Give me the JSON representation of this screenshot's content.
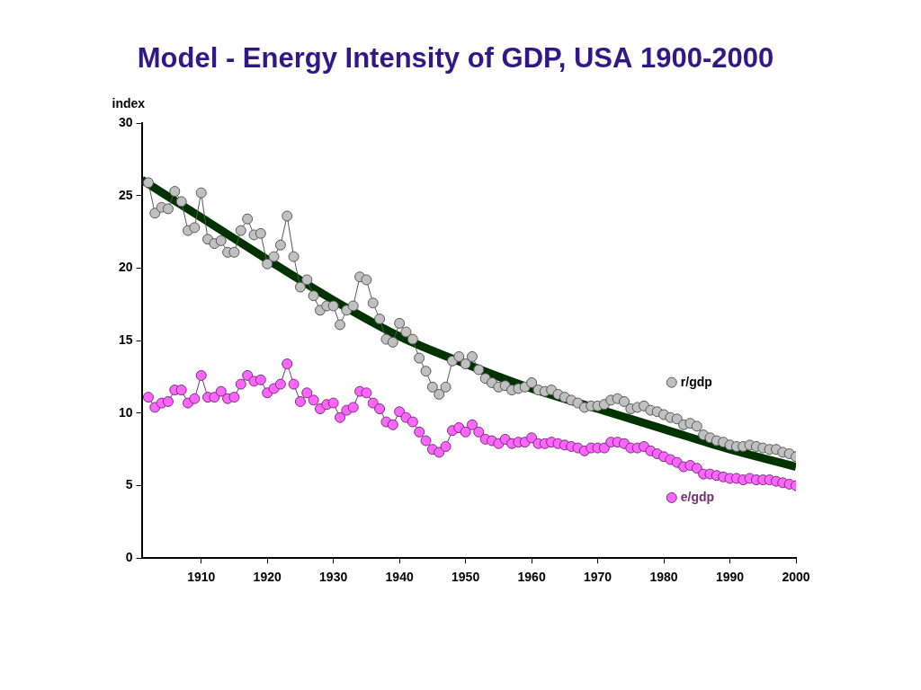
{
  "chart_data": {
    "type": "line",
    "title": "Model - Energy Intensity of GDP, USA 1900-2000",
    "ylabel": "index",
    "xlim": [
      1901,
      2000
    ],
    "xticks": [
      1910,
      1920,
      1930,
      1940,
      1950,
      1960,
      1970,
      1980,
      1990,
      2000
    ],
    "ylim": [
      0,
      30
    ],
    "yticks": [
      0,
      5,
      10,
      15,
      20,
      25,
      30
    ],
    "grid": false,
    "x": [
      1902,
      1903,
      1904,
      1905,
      1906,
      1907,
      1908,
      1909,
      1910,
      1911,
      1912,
      1913,
      1914,
      1915,
      1916,
      1917,
      1918,
      1919,
      1920,
      1921,
      1922,
      1923,
      1924,
      1925,
      1926,
      1927,
      1928,
      1929,
      1930,
      1931,
      1932,
      1933,
      1934,
      1935,
      1936,
      1937,
      1938,
      1939,
      1940,
      1941,
      1942,
      1943,
      1944,
      1945,
      1946,
      1947,
      1948,
      1949,
      1950,
      1951,
      1952,
      1953,
      1954,
      1955,
      1956,
      1957,
      1958,
      1959,
      1960,
      1961,
      1962,
      1963,
      1964,
      1965,
      1966,
      1967,
      1968,
      1969,
      1970,
      1971,
      1972,
      1973,
      1974,
      1975,
      1976,
      1977,
      1978,
      1979,
      1980,
      1981,
      1982,
      1983,
      1984,
      1985,
      1986,
      1987,
      1988,
      1989,
      1990,
      1991,
      1992,
      1993,
      1994,
      1995,
      1996,
      1997,
      1998,
      1999,
      2000
    ],
    "series": [
      {
        "name": "r/gdp",
        "color": "#c0c0c0",
        "marker": "circle",
        "line_style": "solid",
        "values": [
          25.9,
          23.8,
          24.2,
          24.1,
          25.3,
          24.6,
          22.6,
          22.8,
          25.2,
          22.0,
          21.7,
          21.9,
          21.1,
          21.1,
          22.6,
          23.4,
          22.3,
          22.4,
          20.3,
          20.8,
          21.6,
          23.6,
          20.8,
          18.7,
          19.2,
          18.1,
          17.1,
          17.4,
          17.4,
          16.1,
          17.1,
          17.4,
          19.4,
          19.2,
          17.6,
          16.5,
          15.1,
          14.9,
          16.2,
          15.6,
          15.1,
          13.8,
          12.9,
          11.8,
          11.3,
          11.8,
          13.6,
          13.9,
          13.4,
          13.9,
          13.0,
          12.4,
          12.1,
          11.8,
          11.9,
          11.6,
          11.7,
          11.8,
          12.1,
          11.6,
          11.5,
          11.6,
          11.3,
          11.1,
          10.9,
          10.7,
          10.4,
          10.5,
          10.5,
          10.6,
          10.9,
          11.0,
          10.8,
          10.3,
          10.4,
          10.5,
          10.2,
          10.1,
          9.9,
          9.7,
          9.6,
          9.2,
          9.3,
          9.1,
          8.5,
          8.3,
          8.1,
          8.0,
          7.8,
          7.7,
          7.7,
          7.8,
          7.7,
          7.6,
          7.5,
          7.5,
          7.3,
          7.2,
          7.0
        ]
      },
      {
        "name": "e/gdp",
        "color": "#ff66ff",
        "marker": "circle",
        "line_style": "solid",
        "values": [
          11.1,
          10.4,
          10.7,
          10.8,
          11.6,
          11.6,
          10.7,
          11.0,
          12.6,
          11.1,
          11.1,
          11.5,
          11.0,
          11.1,
          12.0,
          12.6,
          12.2,
          12.3,
          11.4,
          11.7,
          12.0,
          13.4,
          12.0,
          10.8,
          11.4,
          10.9,
          10.3,
          10.6,
          10.7,
          9.7,
          10.2,
          10.4,
          11.5,
          11.4,
          10.7,
          10.3,
          9.4,
          9.2,
          10.1,
          9.7,
          9.4,
          8.7,
          8.1,
          7.5,
          7.3,
          7.7,
          8.8,
          9.0,
          8.7,
          9.2,
          8.7,
          8.2,
          8.1,
          7.9,
          8.2,
          7.9,
          8.0,
          8.0,
          8.3,
          7.9,
          7.9,
          8.0,
          7.9,
          7.8,
          7.7,
          7.6,
          7.4,
          7.6,
          7.6,
          7.6,
          8.0,
          8.0,
          7.9,
          7.6,
          7.6,
          7.7,
          7.4,
          7.2,
          7.0,
          6.8,
          6.6,
          6.3,
          6.4,
          6.2,
          5.8,
          5.8,
          5.7,
          5.6,
          5.5,
          5.5,
          5.4,
          5.5,
          5.4,
          5.4,
          5.4,
          5.3,
          5.2,
          5.1,
          5.0
        ]
      },
      {
        "color": "#003300",
        "marker": "none",
        "line_style": "solid",
        "x": [
          1901,
          1910,
          1920,
          1930,
          1940,
          1950,
          1960,
          1970,
          1980,
          1990,
          2000
        ],
        "values": [
          26.1,
          23.5,
          20.6,
          17.8,
          15.3,
          13.4,
          11.7,
          10.3,
          8.9,
          7.5,
          6.3
        ]
      }
    ]
  }
}
